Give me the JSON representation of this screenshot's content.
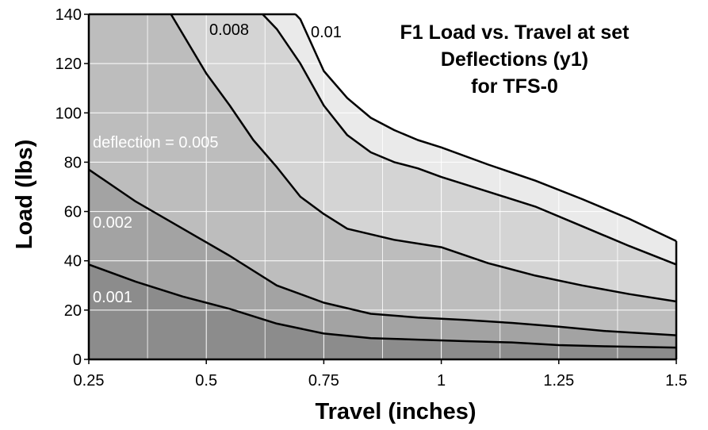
{
  "chart_data": {
    "type": "area",
    "title_lines": [
      "F1 Load vs. Travel at set",
      "Deflections (y1)",
      "for TFS-0"
    ],
    "xlabel": "Travel (inches)",
    "ylabel": "Load (lbs)",
    "xlim": [
      0.25,
      1.5
    ],
    "ylim": [
      0,
      140
    ],
    "xticks": [
      0.25,
      0.5,
      0.75,
      1,
      1.25,
      1.5
    ],
    "xtick_labels": [
      "0.25",
      "0.5",
      "0.75",
      "1",
      "1.25",
      "1.5"
    ],
    "yticks": [
      0,
      20,
      40,
      60,
      80,
      100,
      120,
      140
    ],
    "ytick_labels": [
      "0",
      "20",
      "40",
      "60",
      "80",
      "100",
      "120",
      "140"
    ],
    "grid": true,
    "series": [
      {
        "name": "0.001",
        "label_text": "0.001",
        "label_color": "#ffffff",
        "fill": "#8c8c8c",
        "x": [
          0.25,
          0.35,
          0.45,
          0.55,
          0.65,
          0.75,
          0.85,
          0.95,
          1.05,
          1.15,
          1.25,
          1.35,
          1.5
        ],
        "y": [
          38.5,
          31.5,
          25.5,
          20.5,
          14.5,
          10.5,
          8.6,
          8.0,
          7.4,
          6.9,
          5.8,
          5.3,
          4.8
        ]
      },
      {
        "name": "0.002",
        "label_text": "0.002",
        "label_color": "#ffffff",
        "fill": "#a3a3a3",
        "x": [
          0.25,
          0.35,
          0.45,
          0.55,
          0.65,
          0.75,
          0.85,
          0.95,
          1.05,
          1.15,
          1.25,
          1.35,
          1.5
        ],
        "y": [
          77,
          64,
          53,
          42,
          30,
          23,
          18.5,
          17,
          16,
          14.8,
          13.3,
          11.5,
          9.8
        ]
      },
      {
        "name": "0.005",
        "label_text": "deflection = 0.005",
        "label_color": "#ffffff",
        "fill": "#bdbdbd",
        "x": [
          0.425,
          0.5,
          0.55,
          0.6,
          0.65,
          0.7,
          0.75,
          0.8,
          0.9,
          1.0,
          1.1,
          1.2,
          1.3,
          1.4,
          1.5
        ],
        "y": [
          140,
          116,
          103,
          89,
          78,
          66,
          59,
          53,
          48.5,
          45.5,
          39,
          34,
          30,
          26.5,
          23.5
        ]
      },
      {
        "name": "0.008",
        "label_text": "0.008",
        "label_color": "#000000",
        "fill": "#d4d4d4",
        "x": [
          0.62,
          0.65,
          0.7,
          0.75,
          0.8,
          0.85,
          0.9,
          0.95,
          1.0,
          1.1,
          1.2,
          1.3,
          1.4,
          1.5
        ],
        "y": [
          140,
          134,
          120,
          103,
          91,
          84,
          80,
          77.5,
          74,
          68,
          62,
          54,
          46,
          38.5
        ]
      },
      {
        "name": "0.01",
        "label_text": "0.01",
        "label_color": "#000000",
        "fill": "#eaeaea",
        "x": [
          0.69,
          0.7,
          0.75,
          0.8,
          0.85,
          0.9,
          0.95,
          1.0,
          1.1,
          1.2,
          1.3,
          1.4,
          1.5
        ],
        "y": [
          140,
          138,
          117,
          106,
          98,
          93,
          89,
          86,
          79,
          72.5,
          65,
          57,
          48
        ]
      }
    ]
  }
}
